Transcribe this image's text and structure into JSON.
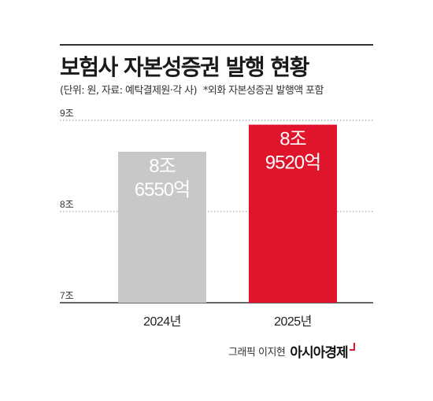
{
  "title": "보험사 자본성증권 발행 현황",
  "subtitle": "(단위: 원, 자료: 예탁결제원·각 사)",
  "note": "*외화 자본성증권 발행액 포함",
  "credit": {
    "byline": "그래픽 이지현",
    "brand": "아시아경제"
  },
  "colors": {
    "bar_2024": "#c8c8c8",
    "bar_2025": "#e0142b",
    "label": "#ffffff",
    "axis": "#333333"
  },
  "chart_data": {
    "type": "bar",
    "categories": [
      "2024년",
      "2025년"
    ],
    "values": [
      86550,
      89520
    ],
    "unit": "억원",
    "data_labels": [
      [
        "8조",
        "6550억"
      ],
      [
        "8조",
        "9520억"
      ]
    ],
    "yticks": [
      {
        "value": 70000,
        "label": "7조"
      },
      {
        "value": 80000,
        "label": "8조"
      },
      {
        "value": 90000,
        "label": "9조"
      }
    ],
    "ylim": [
      70000,
      90000
    ],
    "grid": true,
    "grid_style": "dotted"
  }
}
